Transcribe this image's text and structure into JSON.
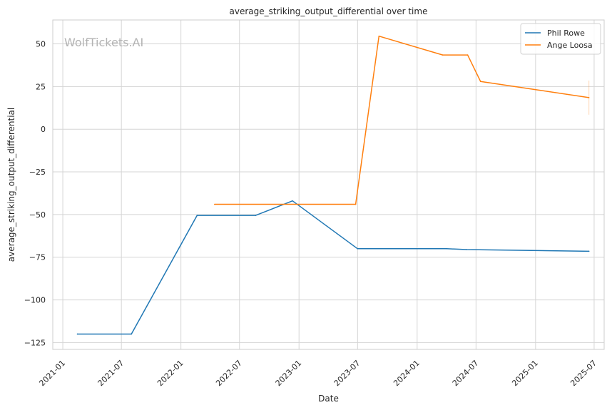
{
  "chart_data": {
    "type": "line",
    "title": "average_striking_output_differential over time",
    "xlabel": "Date",
    "ylabel": "average_striking_output_differential",
    "watermark": "WolfTickets.AI",
    "grid": true,
    "legend_position": "top-right",
    "x_ticks": [
      "2021-01",
      "2021-07",
      "2022-01",
      "2022-07",
      "2023-01",
      "2023-07",
      "2024-01",
      "2024-07",
      "2025-01",
      "2025-07"
    ],
    "y_ticks": [
      50,
      25,
      0,
      -25,
      -50,
      -75,
      -100,
      -125
    ],
    "y_tick_labels": [
      "50",
      "25",
      "0",
      "−25",
      "−50",
      "−75",
      "−100",
      "−125"
    ],
    "xlim": [
      "2020-12-01",
      "2025-08-01"
    ],
    "ylim": [
      -129,
      64
    ],
    "series": [
      {
        "name": "Phil Rowe",
        "color": "#1f77b4",
        "points": [
          {
            "x": "2021-02-15",
            "y": -120
          },
          {
            "x": "2021-08-01",
            "y": -120
          },
          {
            "x": "2022-02-20",
            "y": -50.5
          },
          {
            "x": "2022-08-20",
            "y": -50.5
          },
          {
            "x": "2022-12-12",
            "y": -42
          },
          {
            "x": "2023-07-01",
            "y": -70
          },
          {
            "x": "2024-04-01",
            "y": -70
          },
          {
            "x": "2024-06-01",
            "y": -70.5
          },
          {
            "x": "2025-06-15",
            "y": -71.5
          }
        ]
      },
      {
        "name": "Ange Loosa",
        "color": "#ff7f0e",
        "points": [
          {
            "x": "2022-04-15",
            "y": -44
          },
          {
            "x": "2023-06-25",
            "y": -44
          },
          {
            "x": "2023-09-05",
            "y": 54.5
          },
          {
            "x": "2024-03-20",
            "y": 43.5
          },
          {
            "x": "2024-06-05",
            "y": 43.5
          },
          {
            "x": "2024-07-15",
            "y": 28
          },
          {
            "x": "2025-06-15",
            "y": 18.5
          }
        ],
        "error_bar": {
          "x": "2025-06-15",
          "low": 8.5,
          "high": 28.5
        }
      }
    ]
  }
}
